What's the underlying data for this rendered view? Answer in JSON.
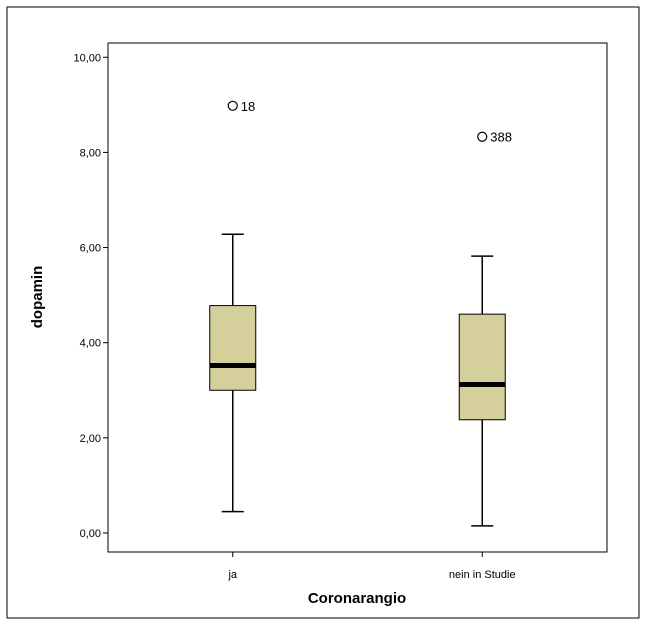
{
  "chart_data": {
    "type": "boxplot",
    "title": "",
    "xlabel": "Coronarangio",
    "ylabel": "dopamin",
    "ylim": [
      -0.4,
      10.3
    ],
    "y_ticks": [
      0,
      2,
      4,
      6,
      8,
      10
    ],
    "y_tick_labels": [
      "0,00",
      "2,00",
      "4,00",
      "6,00",
      "8,00",
      "10,00"
    ],
    "grid": false,
    "legend": "none",
    "box_color": "#d4cf9b",
    "categories": [
      "ja",
      "nein in Studie"
    ],
    "boxes": [
      {
        "category": "ja",
        "whisker_low": 0.45,
        "q1": 3.0,
        "median": 3.52,
        "q3": 4.78,
        "whisker_high": 6.28,
        "outliers": [
          {
            "value": 8.98,
            "label": "18"
          }
        ]
      },
      {
        "category": "nein in Studie",
        "whisker_low": 0.15,
        "q1": 2.38,
        "median": 3.12,
        "q3": 4.6,
        "whisker_high": 5.82,
        "outliers": [
          {
            "value": 8.33,
            "label": "388"
          }
        ]
      }
    ]
  }
}
